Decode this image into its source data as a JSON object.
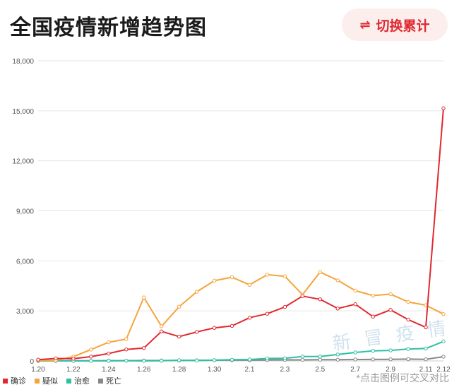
{
  "header": {
    "title": "全国疫情新增趋势图",
    "toggle_label": "切换累计",
    "toggle_icon": "⇌"
  },
  "hint": "*点击图例可交叉对比",
  "watermark": "新 冒 疫 情",
  "colors": {
    "confirmed": "#e0292f",
    "suspected": "#f5a43a",
    "cured": "#2fbfa5",
    "dead": "#888888",
    "grid": "#e6e6e6",
    "axis_text": "#555555"
  },
  "chart_data": {
    "type": "line",
    "title": "",
    "xlabel": "",
    "ylabel": "",
    "ylim": [
      0,
      18000
    ],
    "y_ticks": [
      "0",
      "3,000",
      "6,000",
      "9,000",
      "12,000",
      "15,000",
      "18,000"
    ],
    "y_tick_values": [
      0,
      3000,
      6000,
      9000,
      12000,
      15000,
      18000
    ],
    "categories": [
      "1.20",
      "1.21",
      "1.22",
      "1.23",
      "1.24",
      "1.25",
      "1.26",
      "1.27",
      "1.28",
      "1.29",
      "1.30",
      "1.31",
      "2.1",
      "2.2",
      "2.3",
      "2.4",
      "2.5",
      "2.6",
      "2.7",
      "2.8",
      "2.9",
      "2.10",
      "2.11",
      "2.12"
    ],
    "x_tick_labels": [
      "1.20",
      "1.22",
      "1.24",
      "1.26",
      "1.28",
      "1.30",
      "2.1",
      "2.3",
      "2.5",
      "2.7",
      "2.9",
      "2.11",
      "2.12"
    ],
    "legend_position": "bottom-left",
    "grid": true,
    "series": [
      {
        "name": "确诊",
        "color_key": "confirmed",
        "values": [
          77,
          149,
          131,
          259,
          444,
          688,
          769,
          1771,
          1459,
          1737,
          1981,
          2099,
          2590,
          2829,
          3235,
          3887,
          3694,
          3143,
          3399,
          2656,
          3062,
          2478,
          2015,
          15152
        ]
      },
      {
        "name": "疑似",
        "color_key": "suspected",
        "values": [
          27,
          26,
          257,
          680,
          1118,
          1309,
          3806,
          2077,
          3248,
          4148,
          4812,
          5019,
          4562,
          5173,
          5072,
          3971,
          5328,
          4833,
          4214,
          3916,
          4008,
          3536,
          3342,
          2807
        ]
      },
      {
        "name": "治愈",
        "color_key": "cured",
        "values": [
          4,
          0,
          0,
          6,
          3,
          11,
          2,
          9,
          43,
          21,
          47,
          72,
          85,
          147,
          157,
          262,
          261,
          387,
          510,
          600,
          632,
          716,
          744,
          1171
        ]
      },
      {
        "name": "死亡",
        "color_key": "dead",
        "values": [
          0,
          3,
          8,
          8,
          16,
          15,
          24,
          26,
          26,
          38,
          43,
          46,
          45,
          57,
          64,
          65,
          73,
          73,
          86,
          89,
          97,
          108,
          97,
          254
        ]
      }
    ]
  }
}
